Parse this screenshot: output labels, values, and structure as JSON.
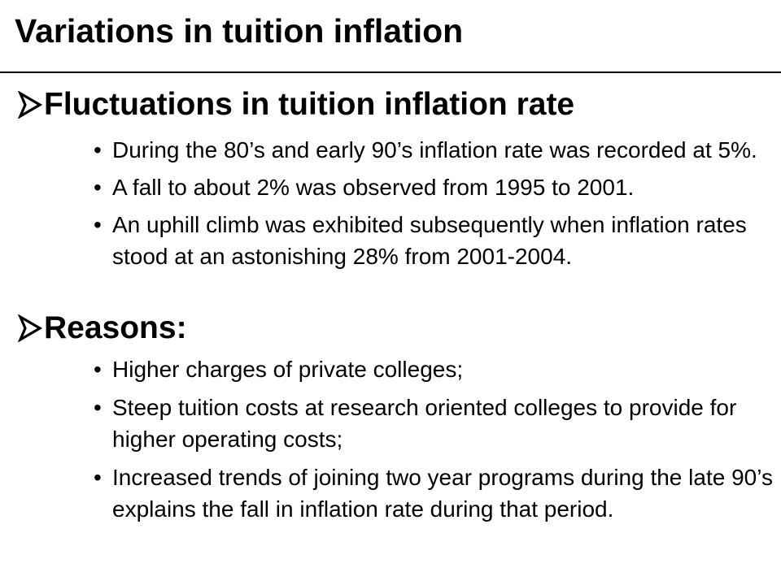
{
  "slide": {
    "title": "Variations in tuition inflation"
  },
  "sections": [
    {
      "heading": "Fluctuations in tuition inflation rate",
      "icon": "arrow-bullet-icon",
      "bullets": [
        "During the 80’s and early 90’s inflation rate was recorded at 5%.",
        "A fall to about 2% was observed from 1995 to 2001.",
        "An uphill climb was exhibited subsequently when inflation rates stood at an astonishing 28% from 2001-2004."
      ]
    },
    {
      "heading": "Reasons:",
      "icon": "arrow-bullet-icon",
      "bullets": [
        "Higher charges of private colleges;",
        "Steep tuition costs at research oriented colleges to provide for higher operating costs;",
        "Increased trends of joining two year programs during the late 90’s explains the fall in inflation rate during that period."
      ]
    }
  ],
  "bullet_glyph": "•",
  "colors": {
    "text": "#000000",
    "background": "#ffffff"
  }
}
